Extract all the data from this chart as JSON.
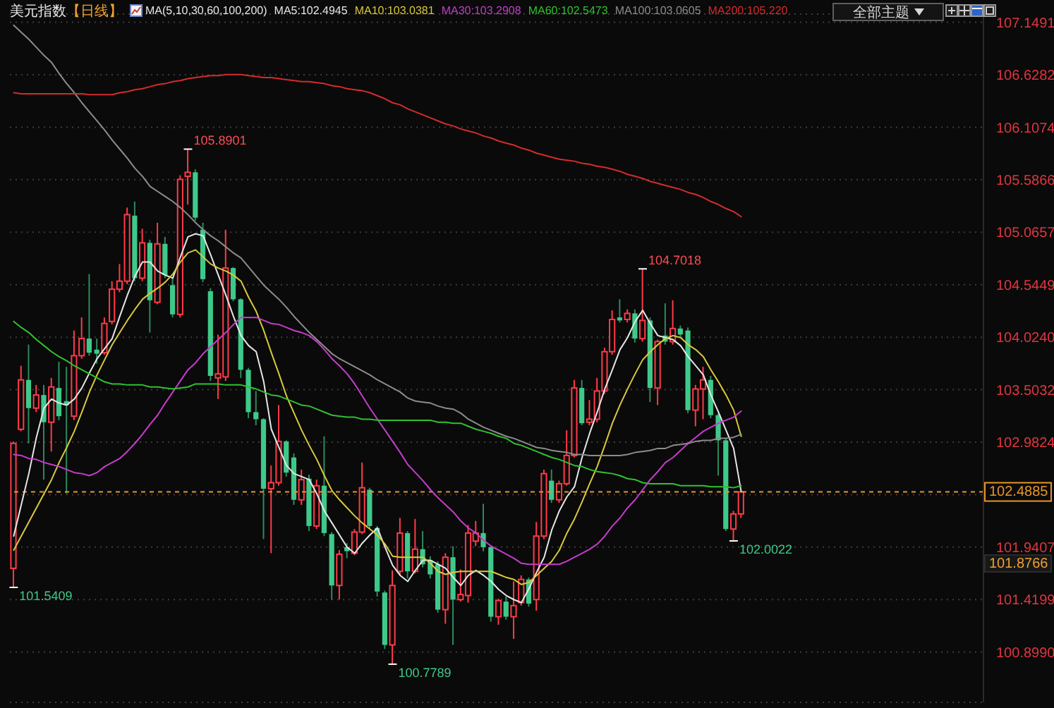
{
  "chart_data": {
    "type": "candlestick",
    "title": "美元指数",
    "subtitle": "【日线】",
    "legend_title": "MA(5,10,30,60,100,200)",
    "categories": [
      null,
      null,
      null,
      null,
      null,
      null,
      null,
      null,
      null,
      null,
      null,
      null,
      null,
      null,
      null,
      null,
      null,
      null,
      null,
      null,
      null,
      null,
      null,
      null,
      null,
      null,
      null,
      null,
      null,
      null,
      null,
      null,
      null,
      null,
      null,
      null,
      null,
      null,
      null,
      null,
      null,
      null,
      null,
      null,
      null,
      null,
      null,
      null,
      null,
      null,
      null,
      null,
      null,
      null,
      null,
      null,
      null,
      null,
      null,
      null,
      null,
      null,
      null,
      null,
      null,
      null,
      null,
      null,
      null,
      null,
      null,
      null,
      null,
      null,
      null,
      null,
      null,
      null,
      null,
      null,
      null,
      null,
      null,
      null,
      null,
      null,
      null,
      null,
      null,
      null,
      null,
      null,
      null,
      null,
      null,
      null,
      null
    ],
    "ohlc": [
      [
        101.73,
        102.99,
        101.5409,
        102.97
      ],
      [
        103.11,
        103.74,
        103.09,
        103.6
      ],
      [
        103.6,
        103.95,
        102.97,
        103.32
      ],
      [
        103.32,
        103.55,
        103.28,
        103.45
      ],
      [
        103.45,
        103.55,
        102.61,
        103.18
      ],
      [
        103.18,
        103.62,
        102.89,
        103.53
      ],
      [
        103.52,
        103.78,
        103.2,
        103.24
      ],
      [
        103.39,
        103.73,
        102.47,
        103.35
      ],
      [
        103.24,
        104.09,
        103.2,
        103.84
      ],
      [
        103.84,
        104.22,
        103.81,
        104.01
      ],
      [
        104.01,
        104.65,
        103.84,
        103.87
      ],
      [
        103.9,
        104.01,
        103.76,
        103.86
      ],
      [
        103.87,
        104.22,
        103.85,
        104.16
      ],
      [
        104.18,
        104.58,
        104.15,
        104.5
      ],
      [
        104.5,
        104.75,
        104.47,
        104.58
      ],
      [
        104.58,
        105.31,
        104.55,
        105.24
      ],
      [
        105.23,
        105.37,
        104.58,
        104.61
      ],
      [
        104.61,
        105.1,
        104.58,
        104.96
      ],
      [
        104.96,
        104.99,
        104.07,
        104.39
      ],
      [
        104.37,
        105.16,
        104.35,
        104.95
      ],
      [
        104.95,
        105.02,
        104.61,
        104.64
      ],
      [
        104.54,
        104.61,
        104.22,
        104.25
      ],
      [
        104.25,
        105.63,
        104.22,
        105.59
      ],
      [
        105.62,
        105.8901,
        105.34,
        105.66
      ],
      [
        105.66,
        105.69,
        105.18,
        105.21
      ],
      [
        105.09,
        105.16,
        104.57,
        104.6
      ],
      [
        104.48,
        104.51,
        103.59,
        103.64
      ],
      [
        103.62,
        104.05,
        103.41,
        103.66
      ],
      [
        103.63,
        105.09,
        103.59,
        104.71
      ],
      [
        104.71,
        104.72,
        104.38,
        104.4
      ],
      [
        104.4,
        104.41,
        103.62,
        103.7
      ],
      [
        103.7,
        103.72,
        103.22,
        103.28
      ],
      [
        103.28,
        103.49,
        103.15,
        103.21
      ],
      [
        103.21,
        103.22,
        102.02,
        102.52
      ],
      [
        102.52,
        102.75,
        101.88,
        102.58
      ],
      [
        102.58,
        103.35,
        102.55,
        102.99
      ],
      [
        102.99,
        103,
        102.64,
        102.68
      ],
      [
        102.83,
        102.87,
        102.36,
        102.41
      ],
      [
        102.41,
        102.71,
        102.36,
        102.61
      ],
      [
        102.62,
        102.66,
        102.1,
        102.15
      ],
      [
        102.15,
        102.61,
        102.12,
        102.55
      ],
      [
        102.55,
        103.04,
        102.05,
        102.08
      ],
      [
        102.07,
        102.09,
        101.42,
        101.56
      ],
      [
        101.56,
        101.91,
        101.42,
        101.87
      ],
      [
        101.94,
        101.98,
        101.83,
        101.9
      ],
      [
        101.88,
        102.12,
        101.86,
        102.09
      ],
      [
        102.09,
        102.78,
        102.07,
        102.53
      ],
      [
        102.51,
        102.53,
        102.12,
        102.15
      ],
      [
        102.13,
        102.15,
        101.45,
        101.5
      ],
      [
        101.49,
        101.51,
        100.93,
        100.97
      ],
      [
        100.97,
        101.71,
        100.7789,
        101.56
      ],
      [
        101.7,
        102.23,
        101.66,
        102.08
      ],
      [
        102.08,
        102.1,
        101.63,
        101.7
      ],
      [
        101.7,
        102.22,
        101.68,
        101.92
      ],
      [
        101.92,
        102.1,
        101.74,
        101.77
      ],
      [
        101.81,
        101.85,
        101.63,
        101.67
      ],
      [
        101.77,
        101.8,
        101.29,
        101.32
      ],
      [
        101.32,
        101.88,
        101.18,
        101.84
      ],
      [
        101.84,
        101.95,
        100.97,
        101.42
      ],
      [
        101.42,
        101.72,
        101.4,
        101.47
      ],
      [
        101.46,
        102.16,
        101.39,
        102.08
      ],
      [
        102,
        102.2,
        101.95,
        102.08
      ],
      [
        102.08,
        102.37,
        101.9,
        101.94
      ],
      [
        101.94,
        101.96,
        101.2,
        101.25
      ],
      [
        101.25,
        101.43,
        101.17,
        101.41
      ],
      [
        101.4,
        101.45,
        101.22,
        101.25
      ],
      [
        101.25,
        101.6,
        101.03,
        101.36
      ],
      [
        101.39,
        101.66,
        101.36,
        101.62
      ],
      [
        101.62,
        101.64,
        101.35,
        101.38
      ],
      [
        101.42,
        102.19,
        101.31,
        102.05
      ],
      [
        102.05,
        102.71,
        102.02,
        102.67
      ],
      [
        102.6,
        102.71,
        102.38,
        102.41
      ],
      [
        102.41,
        102.6,
        102.38,
        102.57
      ],
      [
        102.57,
        103.1,
        102.55,
        102.85
      ],
      [
        102.85,
        103.6,
        102.83,
        103.52
      ],
      [
        103.52,
        103.6,
        103.15,
        103.17
      ],
      [
        103.18,
        103.4,
        103.15,
        103.21
      ],
      [
        103.21,
        103.62,
        103.18,
        103.49
      ],
      [
        103.49,
        103.92,
        103.46,
        103.88
      ],
      [
        103.88,
        104.29,
        103.85,
        104.2
      ],
      [
        104.22,
        104.4,
        104.17,
        104.19
      ],
      [
        104.2,
        104.3,
        104.17,
        104.26
      ],
      [
        104.26,
        104.3,
        103.97,
        104.01
      ],
      [
        104.01,
        104.7018,
        103.98,
        104.19
      ],
      [
        104.19,
        104.22,
        103.38,
        103.52
      ],
      [
        103.52,
        104,
        103.35,
        103.98
      ],
      [
        104.04,
        104.36,
        103.95,
        103.98
      ],
      [
        103.98,
        104.39,
        103.95,
        104.11
      ],
      [
        104.11,
        104.14,
        104.02,
        104.05
      ],
      [
        104.09,
        104.12,
        103.27,
        103.3
      ],
      [
        103.3,
        103.55,
        103.14,
        103.51
      ],
      [
        103.51,
        103.73,
        103.21,
        103.6
      ],
      [
        103.6,
        103.64,
        103.22,
        103.25
      ],
      [
        103.25,
        103.27,
        102.65,
        103
      ],
      [
        103,
        103.02,
        102.1,
        102.12
      ],
      [
        102.12,
        102.3,
        102.0022,
        102.27
      ],
      [
        102.27,
        102.5,
        102.23,
        102.4885
      ]
    ],
    "series": [
      {
        "name": "MA5:102.4945",
        "type": "line",
        "color": "#e6e6e6",
        "values": [
          102.05,
          102.36,
          102.67,
          103.03,
          103.32,
          103.41,
          103.37,
          103.35,
          103.41,
          103.52,
          103.67,
          103.81,
          103.91,
          104.01,
          104.23,
          104.44,
          104.63,
          104.77,
          104.77,
          104.68,
          104.64,
          104.61,
          104.82,
          105.02,
          105.05,
          105.03,
          104.84,
          104.64,
          104.44,
          104.23,
          104.04,
          103.94,
          103.88,
          103.58,
          103.11,
          102.93,
          102.75,
          102.67,
          102.64,
          102.61,
          102.47,
          102.3,
          102.18,
          102.06,
          101.94,
          101.88,
          101.98,
          102.06,
          102.13,
          101.94,
          101.76,
          101.66,
          101.6,
          101.71,
          101.81,
          101.81,
          101.77,
          101.73,
          101.64,
          101.56,
          101.66,
          101.71,
          101.66,
          101.6,
          101.52,
          101.46,
          101.42,
          101.39,
          101.53,
          101.69,
          101.84,
          102.11,
          102.3,
          102.44,
          102.54,
          102.83,
          103.07,
          103.28,
          103.51,
          103.7,
          103.9,
          104.02,
          104.18,
          104.29,
          104.16,
          104.04,
          104.02,
          104,
          103.94,
          103.83,
          103.74,
          103.65,
          103.45,
          103.28,
          103.1,
          102.92,
          102.49
        ]
      },
      {
        "name": "MA10:103.0381",
        "type": "line",
        "color": "#d9c93b",
        "values": [
          101.91,
          102.05,
          102.19,
          102.33,
          102.47,
          102.61,
          102.78,
          102.93,
          103.09,
          103.28,
          103.48,
          103.65,
          103.8,
          103.95,
          104.07,
          104.19,
          104.3,
          104.4,
          104.46,
          104.51,
          104.57,
          104.65,
          104.77,
          104.86,
          104.89,
          104.82,
          104.75,
          104.71,
          104.68,
          104.64,
          104.58,
          104.42,
          104.28,
          104.09,
          103.87,
          103.66,
          103.44,
          103.27,
          103.1,
          102.95,
          102.81,
          102.65,
          102.5,
          102.41,
          102.33,
          102.25,
          102.18,
          102.12,
          102.06,
          101.97,
          101.85,
          101.84,
          101.84,
          101.84,
          101.84,
          101.78,
          101.7,
          101.67,
          101.69,
          101.7,
          101.7,
          101.7,
          101.7,
          101.7,
          101.67,
          101.64,
          101.62,
          101.57,
          101.59,
          101.66,
          101.73,
          101.8,
          101.91,
          102.08,
          102.22,
          102.39,
          102.57,
          102.74,
          102.95,
          103.17,
          103.35,
          103.51,
          103.66,
          103.8,
          103.88,
          103.95,
          104.01,
          104.04,
          104.02,
          103.95,
          103.9,
          103.83,
          103.7,
          103.58,
          103.45,
          103.3,
          103.04
        ]
      },
      {
        "name": "MA30:103.2908",
        "type": "line",
        "color": "#c63ccc",
        "values": [
          102.86,
          102.85,
          102.82,
          102.81,
          102.78,
          102.76,
          102.74,
          102.71,
          102.68,
          102.67,
          102.65,
          102.68,
          102.74,
          102.78,
          102.82,
          102.89,
          102.97,
          103.06,
          103.16,
          103.25,
          103.37,
          103.48,
          103.59,
          103.7,
          103.77,
          103.86,
          103.93,
          104,
          104.07,
          104.15,
          104.22,
          104.22,
          104.22,
          104.19,
          104.16,
          104.15,
          104.12,
          104.09,
          104.07,
          104.04,
          103.98,
          103.9,
          103.81,
          103.74,
          103.66,
          103.56,
          103.44,
          103.32,
          103.21,
          103.1,
          102.99,
          102.88,
          102.76,
          102.68,
          102.6,
          102.51,
          102.43,
          102.36,
          102.29,
          102.2,
          102.13,
          102.08,
          102.01,
          101.95,
          101.91,
          101.87,
          101.83,
          101.78,
          101.77,
          101.77,
          101.77,
          101.77,
          101.77,
          101.8,
          101.84,
          101.88,
          101.92,
          101.97,
          102.05,
          102.15,
          102.23,
          102.33,
          102.41,
          102.51,
          102.61,
          102.69,
          102.78,
          102.83,
          102.9,
          102.97,
          103.03,
          103.09,
          103.13,
          103.17,
          103.2,
          103.23,
          103.29
        ]
      },
      {
        "name": "MA60:102.5473",
        "type": "line",
        "color": "#2fc22f",
        "values": [
          104.18,
          104.12,
          104.07,
          104,
          103.94,
          103.88,
          103.83,
          103.79,
          103.74,
          103.7,
          103.66,
          103.62,
          103.58,
          103.56,
          103.56,
          103.55,
          103.55,
          103.55,
          103.53,
          103.53,
          103.52,
          103.51,
          103.52,
          103.53,
          103.56,
          103.56,
          103.56,
          103.56,
          103.55,
          103.55,
          103.55,
          103.53,
          103.51,
          103.48,
          103.45,
          103.44,
          103.41,
          103.38,
          103.35,
          103.34,
          103.31,
          103.28,
          103.25,
          103.24,
          103.23,
          103.23,
          103.21,
          103.21,
          103.2,
          103.2,
          103.2,
          103.2,
          103.2,
          103.2,
          103.2,
          103.2,
          103.18,
          103.18,
          103.17,
          103.17,
          103.14,
          103.11,
          103.09,
          103.07,
          103.04,
          103.02,
          102.97,
          102.95,
          102.92,
          102.89,
          102.86,
          102.83,
          102.81,
          102.78,
          102.75,
          102.74,
          102.71,
          102.69,
          102.68,
          102.67,
          102.65,
          102.62,
          102.61,
          102.58,
          102.57,
          102.57,
          102.57,
          102.57,
          102.55,
          102.55,
          102.55,
          102.55,
          102.54,
          102.54,
          102.54,
          102.53,
          102.55
        ]
      },
      {
        "name": "MA100:103.0605",
        "type": "line",
        "color": "#8c8c8c",
        "values": [
          107.12,
          107.05,
          106.98,
          106.9,
          106.82,
          106.75,
          106.64,
          106.54,
          106.45,
          106.35,
          106.26,
          106.17,
          106.08,
          105.98,
          105.89,
          105.8,
          105.7,
          105.62,
          105.52,
          105.47,
          105.42,
          105.37,
          105.31,
          105.24,
          105.16,
          105.09,
          105.03,
          104.98,
          104.92,
          104.86,
          104.81,
          104.72,
          104.63,
          104.54,
          104.47,
          104.4,
          104.32,
          104.23,
          104.15,
          104.07,
          104,
          103.93,
          103.86,
          103.81,
          103.77,
          103.73,
          103.69,
          103.65,
          103.6,
          103.56,
          103.52,
          103.48,
          103.42,
          103.39,
          103.38,
          103.37,
          103.34,
          103.32,
          103.31,
          103.27,
          103.21,
          103.17,
          103.13,
          103.1,
          103.07,
          103.04,
          103.02,
          102.99,
          102.96,
          102.93,
          102.92,
          102.9,
          102.89,
          102.88,
          102.86,
          102.86,
          102.85,
          102.85,
          102.85,
          102.85,
          102.85,
          102.86,
          102.88,
          102.89,
          102.9,
          102.92,
          102.92,
          102.95,
          102.96,
          102.97,
          102.99,
          103,
          103,
          103.02,
          103.02,
          103.03,
          103.06
        ]
      },
      {
        "name": "MA200:105.220",
        "type": "line",
        "color": "#d42c2c",
        "values": [
          106.45,
          106.44,
          106.44,
          106.44,
          106.44,
          106.44,
          106.44,
          106.44,
          106.44,
          106.44,
          106.43,
          106.43,
          106.43,
          106.43,
          106.45,
          106.46,
          106.48,
          106.49,
          106.51,
          106.53,
          106.54,
          106.56,
          106.57,
          106.59,
          106.6,
          106.61,
          106.62,
          106.62,
          106.63,
          106.63,
          106.63,
          106.62,
          106.61,
          106.6,
          106.6,
          106.59,
          106.58,
          106.57,
          106.56,
          106.56,
          106.55,
          106.54,
          106.52,
          106.51,
          106.49,
          106.48,
          106.47,
          106.45,
          106.42,
          106.39,
          106.35,
          106.33,
          106.29,
          106.26,
          106.23,
          106.2,
          106.17,
          106.14,
          106.12,
          106.09,
          106.07,
          106.05,
          106.02,
          106,
          105.97,
          105.95,
          105.93,
          105.9,
          105.88,
          105.85,
          105.83,
          105.81,
          105.79,
          105.78,
          105.77,
          105.75,
          105.74,
          105.72,
          105.71,
          105.69,
          105.67,
          105.64,
          105.62,
          105.6,
          105.57,
          105.55,
          105.53,
          105.51,
          105.49,
          105.46,
          105.44,
          105.41,
          105.37,
          105.34,
          105.3,
          105.27,
          105.22
        ]
      }
    ],
    "ylim": [
      100.4,
      107.23
    ],
    "yticks": [
      107.1491,
      106.6282,
      106.1074,
      105.5866,
      105.0657,
      104.5449,
      {
        "value": 104.024,
        "label": "104.0240"
      },
      103.5032,
      102.9824,
      {
        "value": 102.4615,
        "label": null
      },
      101.9407,
      101.4199,
      {
        "value": 100.899,
        "label": "100.8990"
      }
    ],
    "tick_labels": "y",
    "grid": "y",
    "legend": "top",
    "ref_lines": [
      {
        "axis": "y",
        "value": 102.4885,
        "label": "102.4885",
        "color": "#e8952a",
        "line_style": "dashed"
      }
    ],
    "annotations": [
      "全部主题",
      "105.8901",
      "104.7018",
      "101.5409",
      "100.7789",
      "102.0022",
      "101.8766"
    ]
  }
}
